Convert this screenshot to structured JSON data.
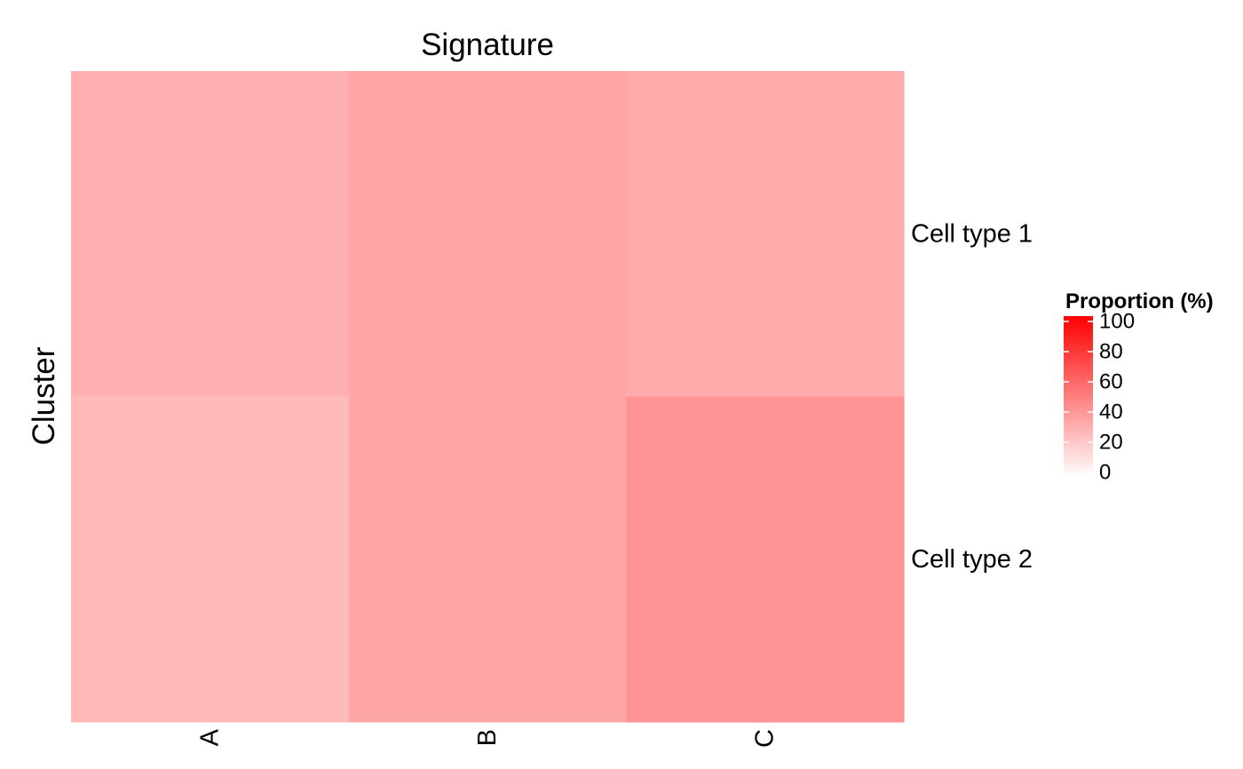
{
  "chart_data": {
    "type": "heatmap",
    "title": "Signature",
    "xlabel": "",
    "ylabel": "Cluster",
    "columns": [
      "A",
      "B",
      "C"
    ],
    "rows": [
      "Cell type 1",
      "Cell type 2"
    ],
    "values": [
      [
        31,
        35,
        33
      ],
      [
        27,
        35,
        42
      ]
    ],
    "color_low": "#ffffff",
    "color_high": "#ff0000",
    "value_range": [
      0,
      100
    ],
    "legend": {
      "title": "Proportion (%)",
      "ticks": [
        0,
        20,
        40,
        60,
        80,
        100
      ],
      "placement": "right"
    },
    "grid": false
  }
}
